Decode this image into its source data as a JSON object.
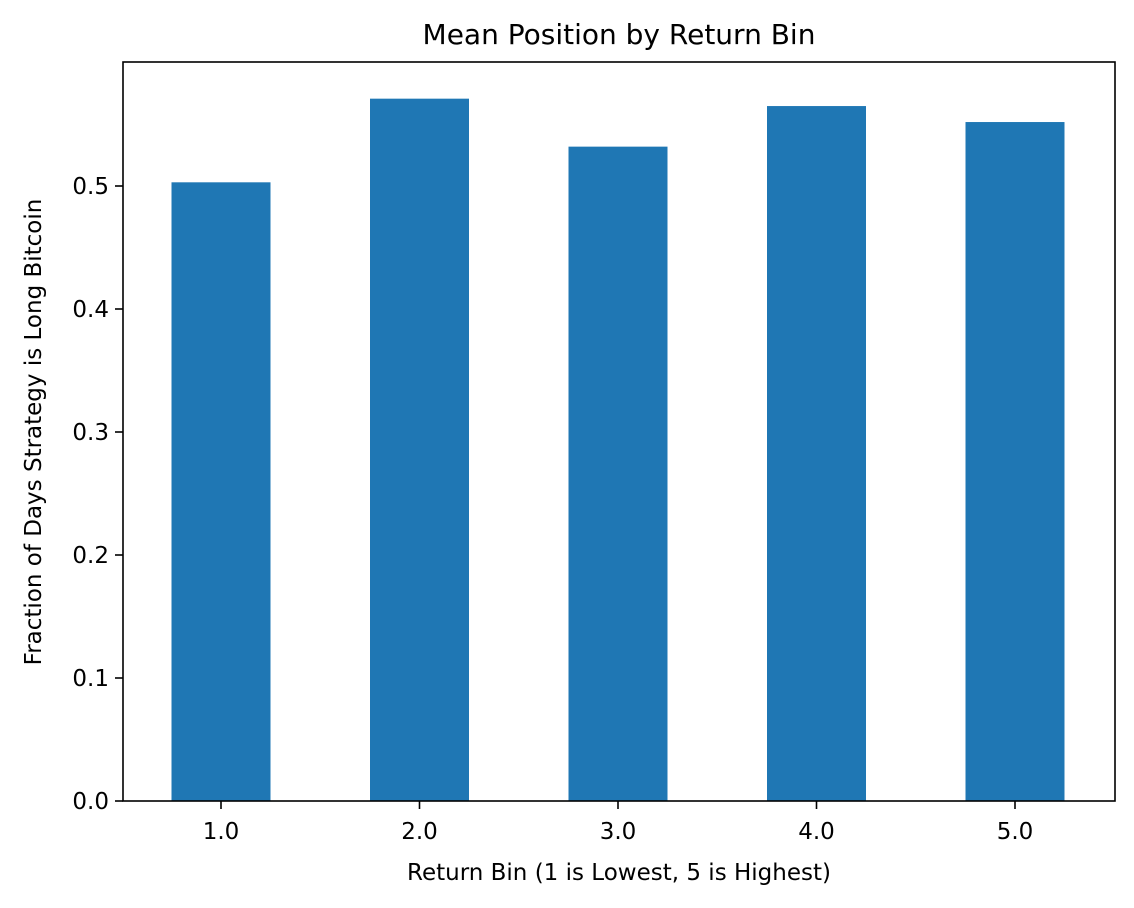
{
  "chart_data": {
    "type": "bar",
    "title": "Mean Position by Return Bin",
    "xlabel": "Return Bin (1 is Lowest, 5 is Highest)",
    "ylabel": "Fraction of Days Strategy is Long Bitcoin",
    "categories": [
      "1.0",
      "2.0",
      "3.0",
      "4.0",
      "5.0"
    ],
    "values": [
      0.503,
      0.571,
      0.532,
      0.565,
      0.552
    ],
    "ylim": [
      0,
      0.6
    ],
    "yticks": [
      "0.0",
      "0.1",
      "0.2",
      "0.3",
      "0.4",
      "0.5"
    ],
    "bar_color": "#1f77b4",
    "grid": false,
    "legend": "none"
  }
}
